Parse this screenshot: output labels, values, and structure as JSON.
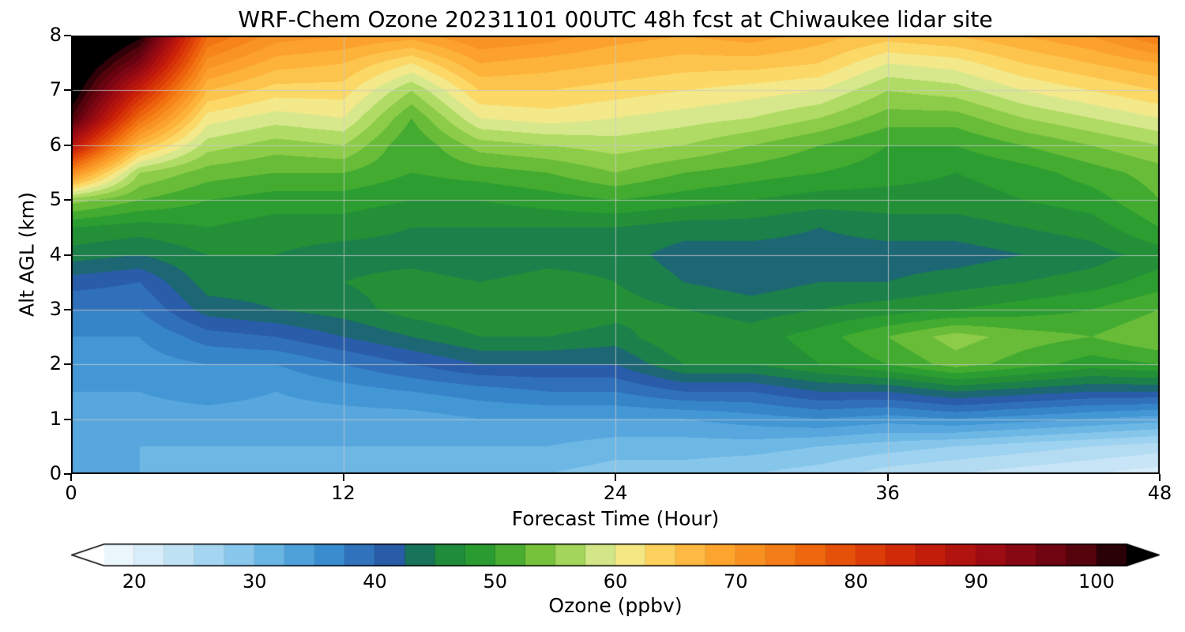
{
  "chart_data": {
    "type": "heatmap",
    "title": "WRF-Chem Ozone  20231101 00UTC 48h fcst at Chiwaukee lidar site",
    "xlabel": "Forecast Time (Hour)",
    "ylabel": "Alt AGL (km)",
    "x_range": [
      0,
      48
    ],
    "y_range": [
      0,
      8
    ],
    "x_ticks": [
      0,
      12,
      24,
      36,
      48
    ],
    "y_ticks": [
      0,
      1,
      2,
      3,
      4,
      5,
      6,
      7,
      8
    ],
    "grid_on": true,
    "x_hours": [
      0,
      3,
      6,
      9,
      12,
      15,
      18,
      21,
      24,
      27,
      30,
      33,
      36,
      39,
      42,
      45,
      48
    ],
    "altitudes_km": [
      0,
      0.5,
      1,
      1.5,
      2,
      2.5,
      3,
      3.5,
      4,
      4.5,
      5,
      5.5,
      6,
      6.5,
      7,
      7.5,
      8
    ],
    "values_layout": "values[i][j] = ozone ppbv at x_hours[i], altitudes_km[j]",
    "values": [
      [
        32,
        32,
        33,
        34,
        35,
        36,
        38,
        41,
        45,
        48,
        55,
        72,
        88,
        100,
        105,
        108,
        112
      ],
      [
        32,
        32,
        33,
        34,
        35,
        36,
        38,
        40,
        44,
        47,
        52,
        56,
        66,
        76,
        85,
        95,
        103
      ],
      [
        31,
        32,
        33,
        35,
        36,
        39,
        43,
        45,
        46,
        48,
        50,
        53,
        57,
        61,
        66,
        71,
        76
      ],
      [
        31,
        32,
        33,
        34,
        36,
        40,
        44,
        45,
        46,
        47,
        49,
        52,
        55,
        59,
        63,
        67,
        71
      ],
      [
        31,
        32,
        33,
        35,
        38,
        42,
        45,
        46,
        45,
        47,
        49,
        52,
        56,
        60,
        63,
        66,
        70
      ],
      [
        30,
        32,
        33,
        36,
        40,
        44,
        47,
        47,
        45,
        46,
        48,
        50,
        50,
        52,
        56,
        62,
        69
      ],
      [
        30,
        32,
        34,
        37,
        42,
        46,
        48,
        46,
        44,
        46,
        48,
        51,
        55,
        60,
        64,
        68,
        72
      ],
      [
        30,
        32,
        34,
        38,
        42,
        46,
        48,
        47,
        45,
        46,
        49,
        52,
        56,
        61,
        64,
        67,
        71
      ],
      [
        29,
        31,
        34,
        38,
        42,
        45,
        47,
        46,
        45,
        46,
        50,
        54,
        57,
        60,
        63,
        66,
        69
      ],
      [
        29,
        31,
        34,
        40,
        46,
        48,
        46,
        44,
        43,
        45,
        49,
        52,
        56,
        59,
        62,
        65,
        68
      ],
      [
        28,
        31,
        35,
        40,
        46,
        47,
        45,
        43,
        43,
        45,
        48,
        51,
        54,
        58,
        61,
        65,
        69
      ],
      [
        27,
        30,
        36,
        42,
        48,
        49,
        46,
        44,
        43,
        44,
        47,
        50,
        52,
        56,
        60,
        64,
        67
      ],
      [
        25,
        29,
        35,
        42,
        50,
        52,
        47,
        44,
        43,
        45,
        47,
        49,
        50,
        53,
        56,
        60,
        65
      ],
      [
        24,
        28,
        36,
        44,
        53,
        55,
        48,
        45,
        43,
        45,
        47,
        48,
        50,
        53,
        57,
        61,
        66
      ],
      [
        23,
        27,
        35,
        43,
        51,
        53,
        49,
        46,
        44,
        46,
        48,
        49,
        52,
        56,
        60,
        64,
        68
      ],
      [
        22,
        26,
        34,
        42,
        49,
        52,
        50,
        47,
        45,
        47,
        49,
        51,
        54,
        58,
        62,
        66,
        70
      ],
      [
        21,
        25,
        33,
        42,
        50,
        54,
        52,
        49,
        47,
        50,
        52,
        53,
        56,
        60,
        64,
        68,
        74
      ]
    ],
    "colorbar": {
      "label": "Ozone  (ppbv)",
      "ticks": [
        20,
        30,
        40,
        50,
        60,
        70,
        80,
        90,
        100
      ],
      "vmin": 17.5,
      "vmax": 102.5,
      "segment_step": 2.5,
      "under_color": "#ffffff",
      "over_color": "#000000",
      "stops": [
        [
          16,
          "#ffffff"
        ],
        [
          20,
          "#e2f2fb"
        ],
        [
          24,
          "#bee1f5"
        ],
        [
          28,
          "#92cdee"
        ],
        [
          32,
          "#60afe2"
        ],
        [
          36,
          "#3a8fd0"
        ],
        [
          40,
          "#2c65b3"
        ],
        [
          42,
          "#27559e"
        ],
        [
          43.5,
          "#17705e"
        ],
        [
          46,
          "#1e8a3c"
        ],
        [
          50,
          "#30a32c"
        ],
        [
          54,
          "#7cc43c"
        ],
        [
          57,
          "#b0db64"
        ],
        [
          60,
          "#ebeea0"
        ],
        [
          62,
          "#fbe273"
        ],
        [
          65,
          "#fdc44d"
        ],
        [
          68,
          "#fda931"
        ],
        [
          72,
          "#f88c1e"
        ],
        [
          76,
          "#f06a0d"
        ],
        [
          80,
          "#e24608"
        ],
        [
          85,
          "#ca2109"
        ],
        [
          90,
          "#a80e11"
        ],
        [
          95,
          "#7c0613"
        ],
        [
          100,
          "#48020a"
        ],
        [
          103,
          "#000000"
        ]
      ]
    },
    "style": {
      "grid_color": "#c8c8c8",
      "frame_color": "#000000",
      "background": "#ffffff"
    }
  }
}
